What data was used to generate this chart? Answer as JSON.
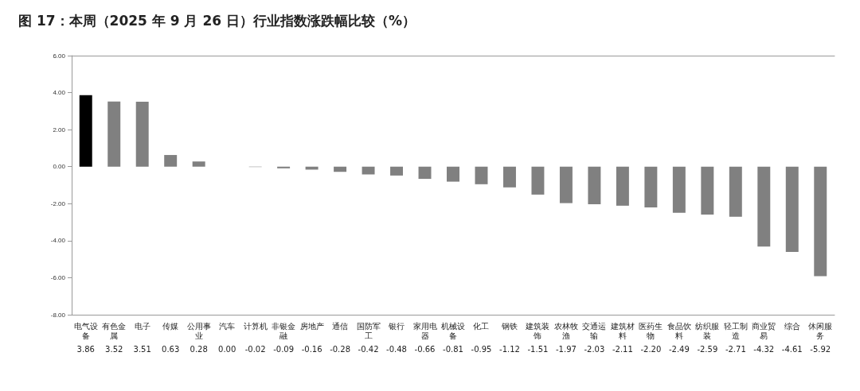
{
  "chart_data": {
    "type": "bar",
    "title": "图 17：本周（2025 年 9 月 26 日）行业指数涨跌幅比较（%）",
    "categories": [
      "电气设备",
      "有色金属",
      "电子",
      "传媒",
      "公用事业",
      "汽车",
      "计算机",
      "非银金融",
      "房地产",
      "通信",
      "国防军工",
      "银行",
      "家用电器",
      "机械设备",
      "化工",
      "钢铁",
      "建筑装饰",
      "农林牧渔",
      "交通运输",
      "建筑材料",
      "医药生物",
      "食品饮料",
      "纺织服装",
      "轻工制造",
      "商业贸易",
      "综合",
      "休闲服务"
    ],
    "values": [
      3.86,
      3.52,
      3.51,
      0.63,
      0.28,
      0.0,
      -0.02,
      -0.09,
      -0.16,
      -0.28,
      -0.42,
      -0.48,
      -0.66,
      -0.81,
      -0.95,
      -1.12,
      -1.51,
      -1.97,
      -2.03,
      -2.11,
      -2.2,
      -2.49,
      -2.59,
      -2.71,
      -4.32,
      -4.61,
      -5.92
    ],
    "colors": [
      "#000000",
      "#808080",
      "#808080",
      "#808080",
      "#808080",
      "#808080",
      "#808080",
      "#808080",
      "#808080",
      "#808080",
      "#808080",
      "#808080",
      "#808080",
      "#808080",
      "#808080",
      "#808080",
      "#808080",
      "#808080",
      "#808080",
      "#808080",
      "#808080",
      "#808080",
      "#808080",
      "#808080",
      "#808080",
      "#808080",
      "#808080"
    ],
    "ylim": [
      -8,
      6
    ],
    "yticks": [
      {
        "value": -8,
        "label": "-8.00"
      },
      {
        "value": -6,
        "label": "-6.00"
      },
      {
        "value": -4,
        "label": "-4.00"
      },
      {
        "value": -2,
        "label": "-2.00"
      },
      {
        "value": 0,
        "label": "0.00"
      },
      {
        "value": 2,
        "label": "2.00"
      },
      {
        "value": 4,
        "label": "4.00"
      },
      {
        "value": 6,
        "label": "6.00"
      }
    ],
    "value_labels": [
      "3.86",
      "3.52",
      "3.51",
      "0.63",
      "0.28",
      "0.00",
      "-0.02",
      "-0.09",
      "-0.16",
      "-0.28",
      "-0.42",
      "-0.48",
      "-0.66",
      "-0.81",
      "-0.95",
      "-1.12",
      "-1.51",
      "-1.97",
      "-2.03",
      "-2.11",
      "-2.20",
      "-2.49",
      "-2.59",
      "-2.71",
      "-4.32",
      "-4.61",
      "-5.92"
    ]
  }
}
